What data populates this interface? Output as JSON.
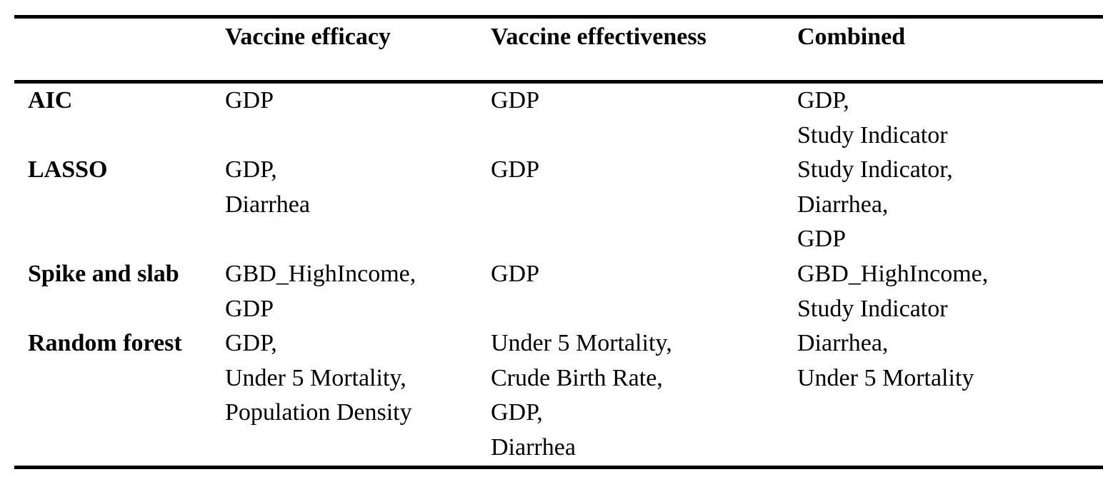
{
  "table": {
    "headers": [
      "",
      "Vaccine efficacy",
      "Vaccine effectiveness",
      "Combined"
    ],
    "rows": [
      {
        "label": "AIC",
        "efficacy": [
          "GDP"
        ],
        "effectiveness": [
          "GDP"
        ],
        "combined": [
          "GDP,",
          "Study Indicator"
        ]
      },
      {
        "label": "LASSO",
        "efficacy": [
          "GDP,",
          "Diarrhea"
        ],
        "effectiveness": [
          "GDP"
        ],
        "combined": [
          "Study Indicator,",
          "Diarrhea,",
          "GDP"
        ]
      },
      {
        "label": "Spike and slab",
        "efficacy": [
          "GBD_HighIncome,",
          "GDP"
        ],
        "effectiveness": [
          "GDP"
        ],
        "combined": [
          "GBD_HighIncome,",
          "Study Indicator"
        ]
      },
      {
        "label": "Random forest",
        "efficacy": [
          "GDP,",
          "Under 5 Mortality,",
          "Population Density"
        ],
        "effectiveness": [
          "Under 5 Mortality,",
          "Crude Birth Rate,",
          "GDP,",
          "Diarrhea"
        ],
        "combined": [
          "Diarrhea,",
          "Under 5 Mortality"
        ]
      }
    ]
  }
}
